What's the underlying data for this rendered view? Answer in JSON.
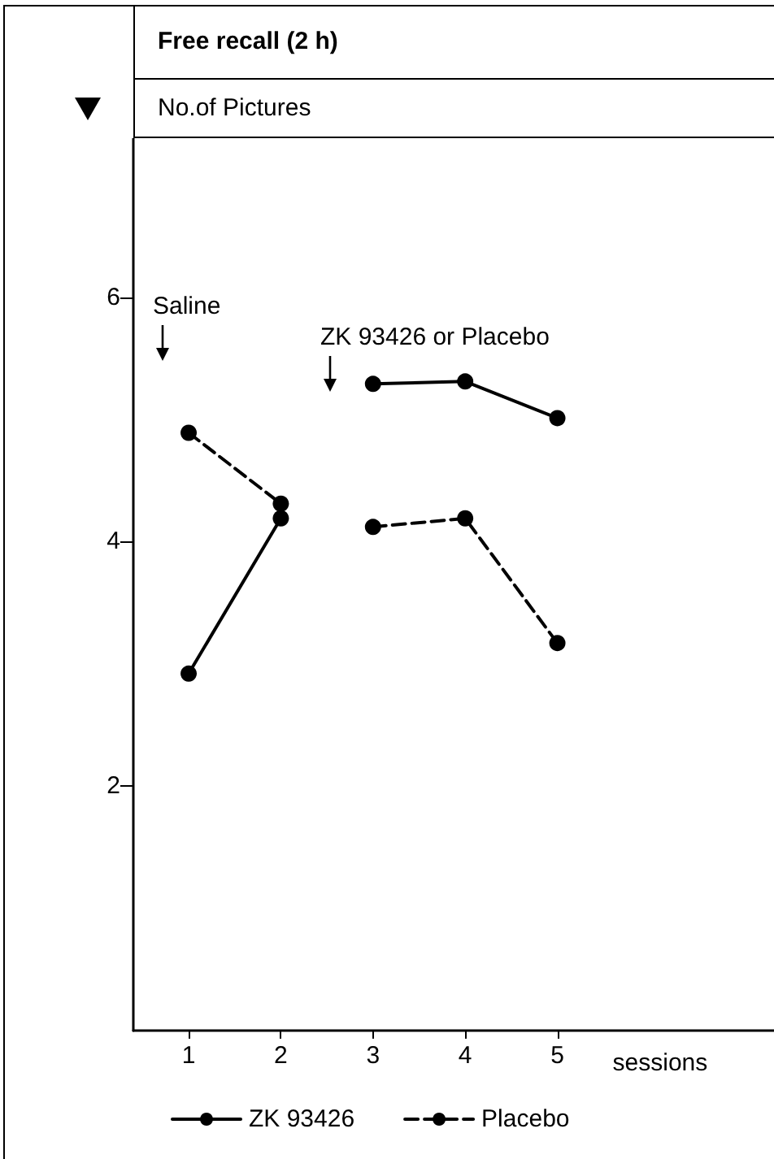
{
  "chart_data": {
    "type": "line",
    "title": "Free recall (2 h)",
    "ylabel": "No.of Pictures",
    "xlabel": "sessions",
    "x": [
      1,
      2,
      2.5,
      3,
      4,
      5
    ],
    "series": [
      {
        "name": "ZK 93426",
        "color": "#000000",
        "line_style": "solid",
        "values": [
          2.92,
          4.19,
          null,
          5.29,
          5.31,
          5.01
        ]
      },
      {
        "name": "Placebo",
        "color": "#000000",
        "line_style": "dashed",
        "values": [
          4.89,
          4.31,
          null,
          4.12,
          4.19,
          3.17
        ]
      }
    ],
    "annotations": [
      "Saline",
      "ZK 93426 or Placebo"
    ],
    "xlim": [
      0.4,
      7.35
    ],
    "ylim": [
      0,
      7.3
    ],
    "xticks": [
      1,
      2,
      3,
      4,
      5
    ],
    "yticks": [
      2,
      4,
      6
    ],
    "grid": false,
    "legend": "bottom",
    "marker": "circle"
  }
}
